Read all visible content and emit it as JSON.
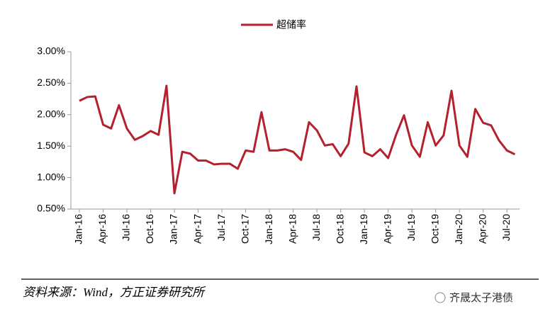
{
  "chart_data": {
    "type": "line",
    "legend_position": "top",
    "categories": [
      "Jan-16",
      null,
      null,
      "Apr-16",
      null,
      null,
      "Jul-16",
      null,
      null,
      "Oct-16",
      null,
      null,
      "Jan-17",
      null,
      null,
      "Apr-17",
      null,
      null,
      "Jul-17",
      null,
      null,
      "Oct-17",
      null,
      null,
      "Jan-18",
      null,
      null,
      "Apr-18",
      null,
      null,
      "Jul-18",
      null,
      null,
      "Oct-18",
      null,
      null,
      "Jan-19",
      null,
      null,
      "Apr-19",
      null,
      null,
      "Jul-19",
      null,
      null,
      "Oct-19",
      null,
      null,
      "Jan-20",
      null,
      null,
      "Apr-20",
      null,
      null,
      "Jul-20",
      null
    ],
    "series": [
      {
        "name": "超储率",
        "color": "#b5202e",
        "values": [
          2.22,
          2.28,
          2.29,
          1.84,
          1.78,
          2.15,
          1.78,
          1.6,
          1.66,
          1.74,
          1.68,
          2.46,
          0.75,
          1.41,
          1.38,
          1.27,
          1.27,
          1.21,
          1.22,
          1.22,
          1.14,
          1.43,
          1.41,
          2.04,
          1.43,
          1.43,
          1.45,
          1.41,
          1.28,
          1.88,
          1.75,
          1.51,
          1.53,
          1.34,
          1.54,
          2.45,
          1.4,
          1.34,
          1.45,
          1.31,
          1.68,
          1.99,
          1.51,
          1.33,
          1.88,
          1.51,
          1.67,
          2.38,
          1.51,
          1.33,
          2.09,
          1.87,
          1.83,
          1.59,
          1.43,
          1.37
        ]
      }
    ],
    "ylim": [
      0.5,
      3.0
    ],
    "yticks": [
      {
        "value": 0.5,
        "label": "0.50%"
      },
      {
        "value": 1.0,
        "label": "1.00%"
      },
      {
        "value": 1.5,
        "label": "1.50%"
      },
      {
        "value": 2.0,
        "label": "2.00%"
      },
      {
        "value": 2.5,
        "label": "2.50%"
      },
      {
        "value": 3.0,
        "label": "3.00%"
      }
    ],
    "grid": false,
    "source": "资料来源：Wind，方正证券研究所",
    "watermark": "齐晟太子港债"
  }
}
